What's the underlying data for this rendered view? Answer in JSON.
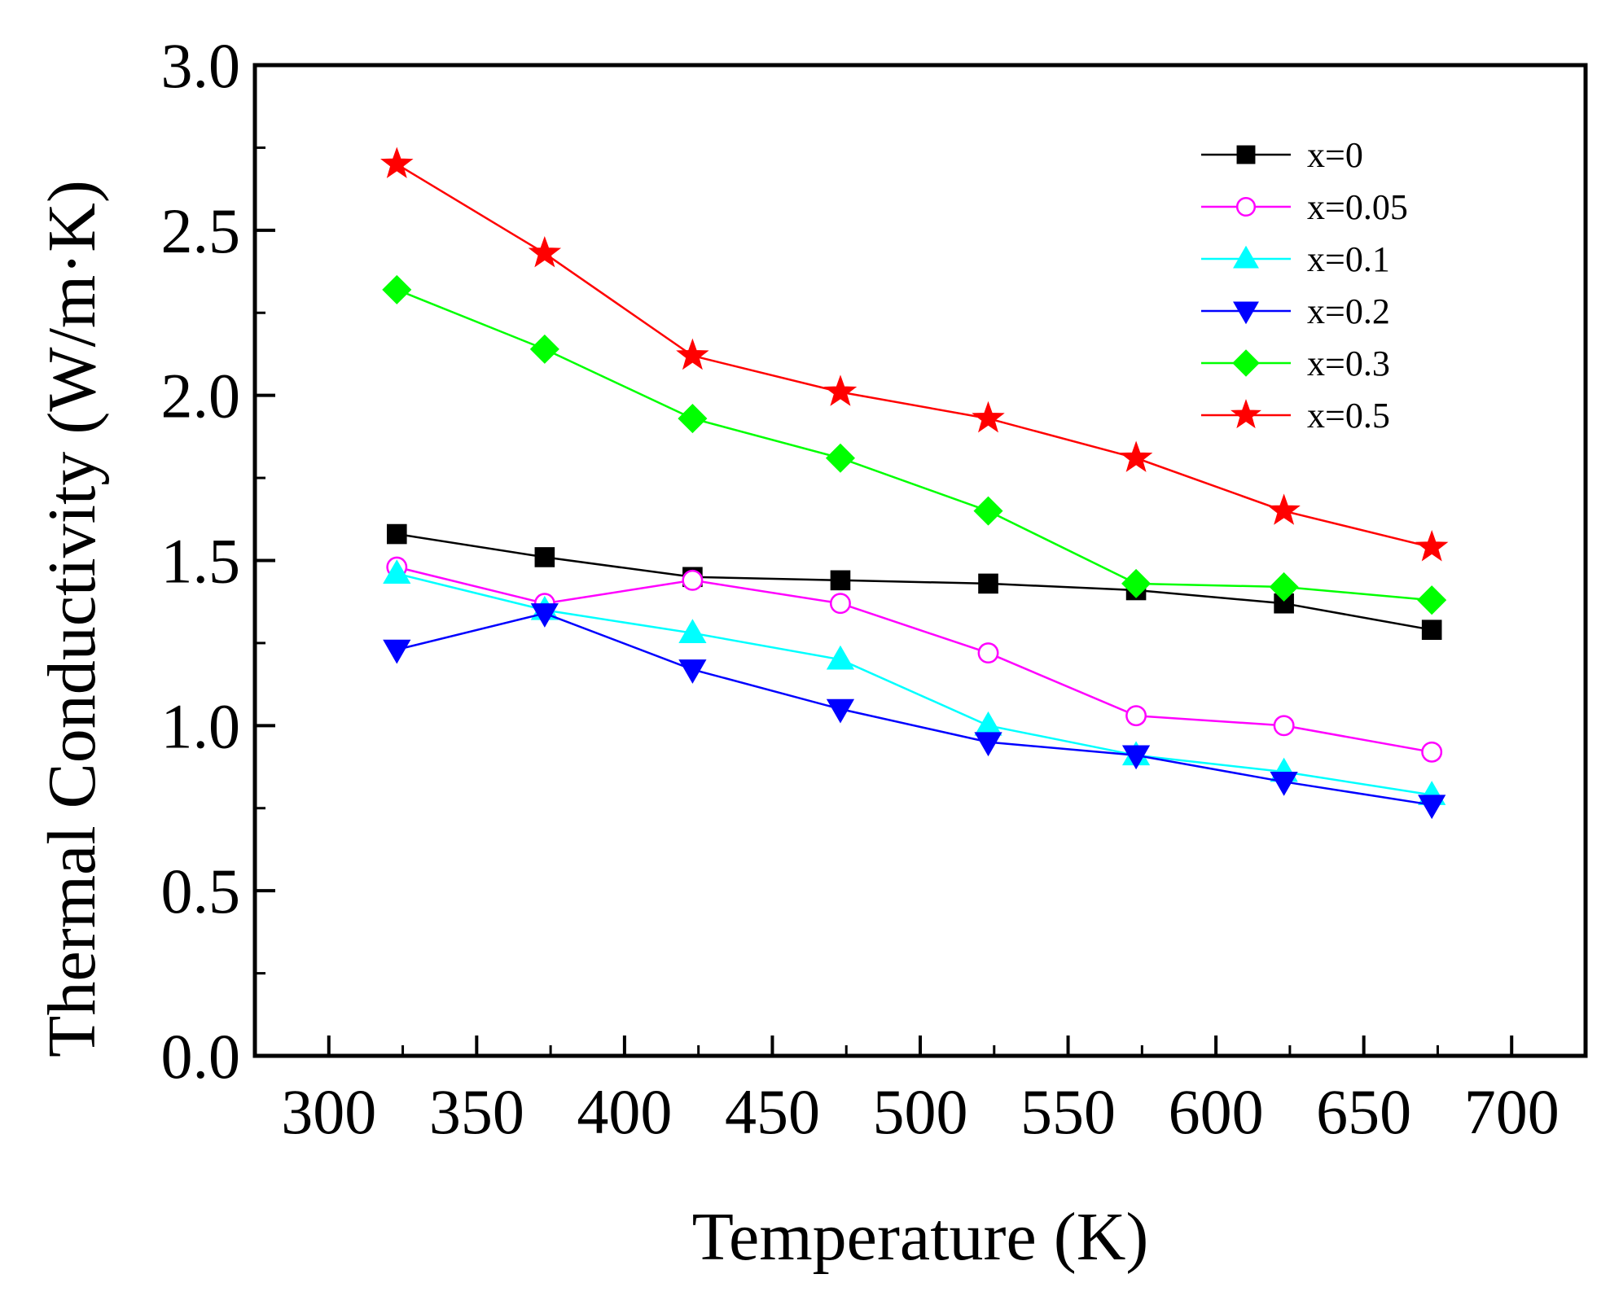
{
  "chart_data": {
    "type": "line",
    "title": "",
    "xlabel": "Temperature (K)",
    "ylabel": "Thermal Conductivity (W/m·K)",
    "xlim": [
      275,
      725
    ],
    "ylim": [
      0.0,
      3.0
    ],
    "x_ticks": [
      300,
      350,
      400,
      450,
      500,
      550,
      600,
      650,
      700
    ],
    "x_tick_labels": [
      "300",
      "350",
      "400",
      "450",
      "500",
      "550",
      "600",
      "650",
      "700"
    ],
    "y_ticks": [
      0.0,
      0.5,
      1.0,
      1.5,
      2.0,
      2.5,
      3.0
    ],
    "y_tick_labels": [
      "0.0",
      "0.5",
      "1.0",
      "1.5",
      "2.0",
      "2.5",
      "3.0"
    ],
    "grid": false,
    "legend_position": "top-right",
    "x": [
      323,
      373,
      423,
      473,
      523,
      573,
      623,
      673
    ],
    "series": [
      {
        "name": "x=0",
        "label": "x=0",
        "color": "#000000",
        "marker": "square",
        "filled": true,
        "values": [
          1.58,
          1.51,
          1.45,
          1.44,
          1.43,
          1.41,
          1.37,
          1.29
        ]
      },
      {
        "name": "x=0.05",
        "label": "x=0.05",
        "color": "#ff00ff",
        "marker": "circle",
        "filled": false,
        "values": [
          1.48,
          1.37,
          1.44,
          1.37,
          1.22,
          1.03,
          1.0,
          0.92
        ]
      },
      {
        "name": "x=0.1",
        "label": "x=0.1",
        "color": "#00ffff",
        "marker": "triangle-up",
        "filled": true,
        "values": [
          1.46,
          1.35,
          1.28,
          1.2,
          1.0,
          0.91,
          0.86,
          0.79
        ]
      },
      {
        "name": "x=0.2",
        "label": "x=0.2",
        "color": "#0000ff",
        "marker": "triangle-down",
        "filled": true,
        "values": [
          1.23,
          1.34,
          1.17,
          1.05,
          0.95,
          0.91,
          0.83,
          0.76
        ]
      },
      {
        "name": "x=0.3",
        "label": "x=0.3",
        "color": "#00ff00",
        "marker": "diamond",
        "filled": true,
        "values": [
          2.32,
          2.14,
          1.93,
          1.81,
          1.65,
          1.43,
          1.42,
          1.38
        ]
      },
      {
        "name": "x=0.5",
        "label": "x=0.5",
        "color": "#ff0000",
        "marker": "star",
        "filled": true,
        "values": [
          2.7,
          2.43,
          2.12,
          2.01,
          1.93,
          1.81,
          1.65,
          1.54
        ]
      }
    ]
  }
}
